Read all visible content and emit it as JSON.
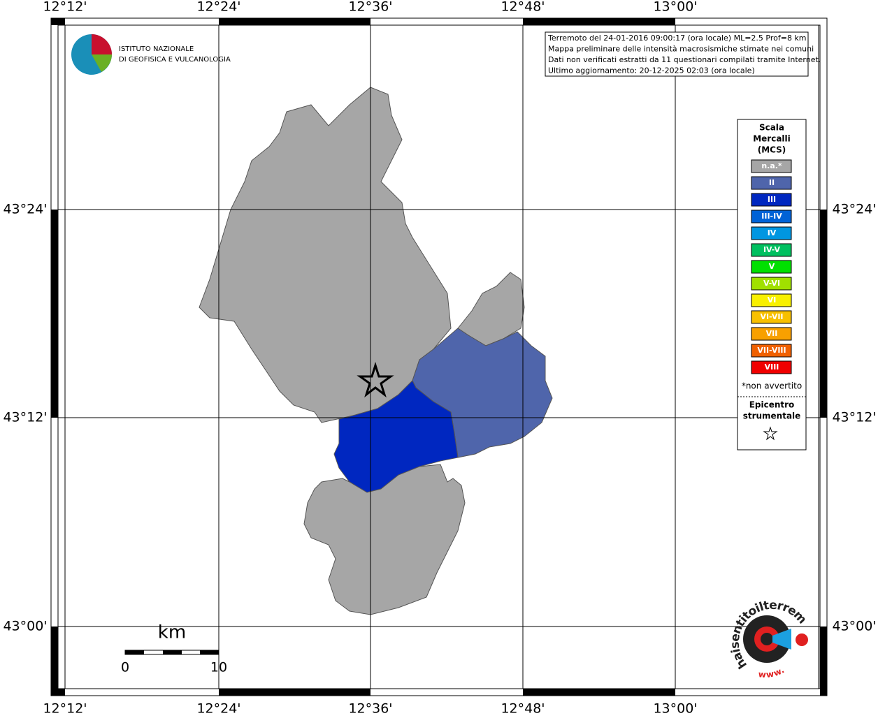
{
  "map": {
    "lon_labels": [
      "12°12'",
      "12°24'",
      "12°36'",
      "12°48'",
      "13°00'"
    ],
    "lat_labels": [
      "43°24'",
      "43°12'",
      "43°00'"
    ],
    "info": [
      "Terremoto del 24-01-2016 09:00:17 (ora locale) ML=2.5 Prof=8 km",
      "Mappa preliminare delle intensità macrosismiche stimate nei comuni",
      "Dati non verificati estratti da 11 questionari compilati tramite Internet.",
      "Ultimo aggiornamento: 20-12-2025 02:03 (ora locale)"
    ],
    "logo": [
      "ISTITUTO NAZIONALE",
      "DI GEOFISICA E VULCANOLOGIA"
    ],
    "legend": {
      "title": [
        "Scala",
        "Mercalli",
        "(MCS)"
      ],
      "items": [
        {
          "label": "n.a.*",
          "color": "#a6a6a6"
        },
        {
          "label": "II",
          "color": "#4f65ab"
        },
        {
          "label": "III",
          "color": "#0027c0"
        },
        {
          "label": "III-IV",
          "color": "#0062d6"
        },
        {
          "label": "IV",
          "color": "#0096e1"
        },
        {
          "label": "IV-V",
          "color": "#00c060"
        },
        {
          "label": "V",
          "color": "#00e000"
        },
        {
          "label": "V-VI",
          "color": "#a0e000"
        },
        {
          "label": "VI",
          "color": "#f8f000"
        },
        {
          "label": "VI-VII",
          "color": "#f8c000"
        },
        {
          "label": "VII",
          "color": "#f8a000"
        },
        {
          "label": "VII-VIII",
          "color": "#f06000"
        },
        {
          "label": "VIII",
          "color": "#f00000"
        }
      ],
      "note": "*non avvertito",
      "epicentre": [
        "Epicentro",
        "strumentale"
      ]
    },
    "scale": {
      "unit": "km",
      "labels": [
        "0",
        "10"
      ]
    },
    "site": {
      "name": "haisentitoilterremoto.it",
      "www": "www."
    }
  }
}
